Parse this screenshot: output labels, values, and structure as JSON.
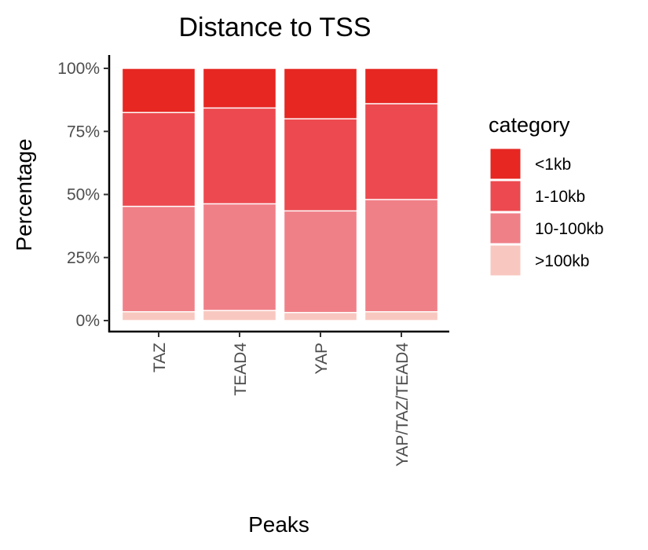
{
  "chart_data": {
    "type": "bar",
    "stacked": true,
    "title": "Distance to TSS",
    "xlabel": "Peaks",
    "ylabel": "Percentage",
    "categories": [
      "TAZ",
      "TEAD4",
      "YAP",
      "YAP/TAZ/TEAD4"
    ],
    "ylim": [
      0,
      100
    ],
    "y_ticks": [
      "0%",
      "25%",
      "50%",
      "75%",
      "100%"
    ],
    "y_tick_values": [
      0,
      25,
      50,
      75,
      100
    ],
    "legend_title": "category",
    "legend_position": "right",
    "grid": false,
    "series": [
      {
        "name": ">100kb",
        "color": "#F8C8C0",
        "values": [
          3.5,
          4.0,
          3.2,
          3.5
        ]
      },
      {
        "name": "10-100kb",
        "color": "#F08088",
        "values": [
          41.8,
          42.3,
          40.3,
          44.5
        ]
      },
      {
        "name": "1-10kb",
        "color": "#EC4A50",
        "values": [
          37.2,
          38.0,
          36.5,
          38.0
        ]
      },
      {
        "name": "<1kb",
        "color": "#E62722",
        "values": [
          17.5,
          15.7,
          20.0,
          14.0
        ]
      }
    ],
    "legend_order": [
      "<1kb",
      "1-10kb",
      "10-100kb",
      ">100kb"
    ]
  }
}
